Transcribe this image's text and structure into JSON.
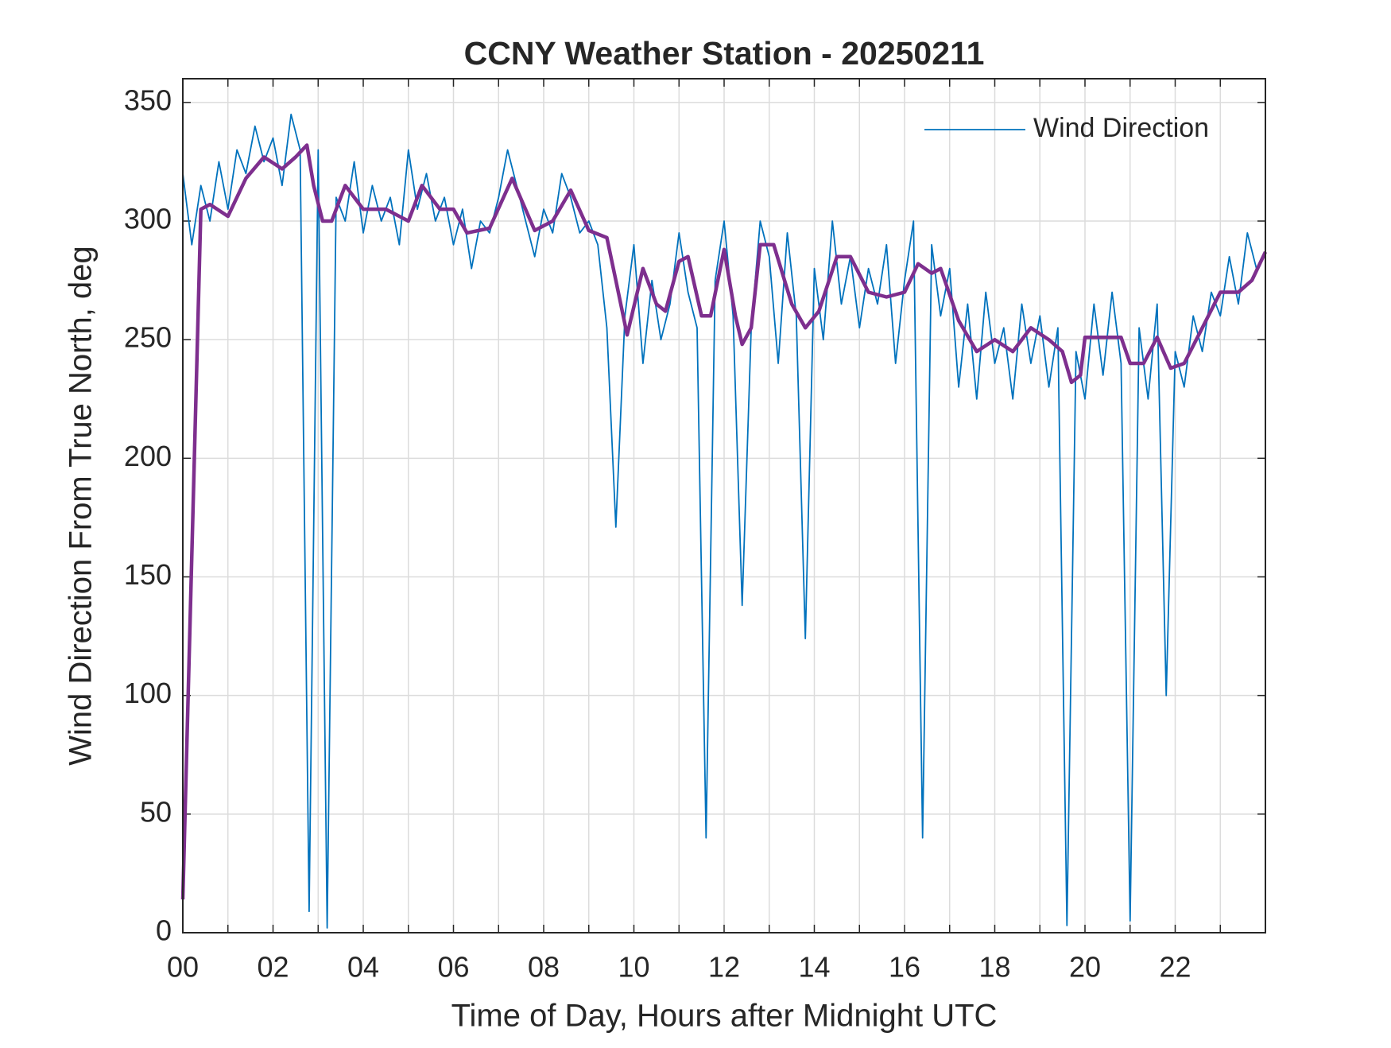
{
  "chart_data": {
    "type": "line",
    "title": "CCNY Weather Station - 20250211",
    "x_label": "Time of Day, Hours after Midnight UTC",
    "y_label": "Wind Direction From True North, deg",
    "xlim": [
      0,
      24
    ],
    "ylim": [
      0,
      360
    ],
    "xticks": [
      {
        "value": 0,
        "label": "00"
      },
      {
        "value": 2,
        "label": "02"
      },
      {
        "value": 4,
        "label": "04"
      },
      {
        "value": 6,
        "label": "06"
      },
      {
        "value": 8,
        "label": "08"
      },
      {
        "value": 10,
        "label": "10"
      },
      {
        "value": 12,
        "label": "12"
      },
      {
        "value": 14,
        "label": "14"
      },
      {
        "value": 16,
        "label": "16"
      },
      {
        "value": 18,
        "label": "18"
      },
      {
        "value": 20,
        "label": "20"
      },
      {
        "value": 22,
        "label": "22"
      }
    ],
    "x_minor_ticks": [
      1,
      3,
      5,
      7,
      9,
      11,
      13,
      15,
      17,
      19,
      21,
      23
    ],
    "yticks": [
      0,
      50,
      100,
      150,
      200,
      250,
      300,
      350
    ],
    "grid": true,
    "legend": "northeast",
    "series": [
      {
        "name": "Wind Direction",
        "color": "#0072bd",
        "x": [
          0,
          0.2,
          0.4,
          0.6,
          0.8,
          1,
          1.2,
          1.4,
          1.6,
          1.8,
          2,
          2.2,
          2.4,
          2.6,
          2.8,
          3,
          3.2,
          3.4,
          3.6,
          3.8,
          4,
          4.2,
          4.4,
          4.6,
          4.8,
          5,
          5.2,
          5.4,
          5.6,
          5.8,
          6,
          6.2,
          6.4,
          6.6,
          6.8,
          7,
          7.2,
          7.4,
          7.6,
          7.8,
          8,
          8.2,
          8.4,
          8.6,
          8.8,
          9,
          9.2,
          9.4,
          9.6,
          9.8,
          10,
          10.2,
          10.4,
          10.6,
          10.8,
          11,
          11.2,
          11.4,
          11.6,
          11.8,
          12,
          12.2,
          12.4,
          12.6,
          12.8,
          13,
          13.2,
          13.4,
          13.6,
          13.8,
          14,
          14.2,
          14.4,
          14.6,
          14.8,
          15,
          15.2,
          15.4,
          15.6,
          15.8,
          16,
          16.2,
          16.4,
          16.6,
          16.8,
          17,
          17.2,
          17.4,
          17.6,
          17.8,
          18,
          18.2,
          18.4,
          18.6,
          18.8,
          19,
          19.2,
          19.4,
          19.6,
          19.8,
          20,
          20.2,
          20.4,
          20.6,
          20.8,
          21,
          21.2,
          21.4,
          21.6,
          21.8,
          22,
          22.2,
          22.4,
          22.6,
          22.8,
          23,
          23.2,
          23.4,
          23.6,
          23.8
        ],
        "values": [
          320,
          290,
          315,
          300,
          325,
          305,
          330,
          320,
          340,
          325,
          335,
          315,
          345,
          330,
          9,
          330,
          2,
          310,
          300,
          325,
          295,
          315,
          300,
          310,
          290,
          330,
          305,
          320,
          300,
          310,
          290,
          305,
          280,
          300,
          295,
          310,
          330,
          315,
          300,
          285,
          305,
          295,
          320,
          310,
          295,
          300,
          290,
          255,
          171,
          260,
          290,
          240,
          275,
          250,
          265,
          295,
          270,
          255,
          40,
          275,
          300,
          260,
          138,
          255,
          300,
          285,
          240,
          295,
          260,
          124,
          280,
          250,
          300,
          265,
          285,
          255,
          280,
          265,
          290,
          240,
          275,
          300,
          40,
          290,
          260,
          280,
          230,
          265,
          225,
          270,
          240,
          255,
          225,
          265,
          240,
          260,
          230,
          255,
          3,
          245,
          225,
          265,
          235,
          270,
          240,
          5,
          255,
          225,
          265,
          100,
          245,
          230,
          260,
          245,
          270,
          260,
          285,
          265,
          295,
          280
        ]
      },
      {
        "color": "#7e2f8e",
        "x": [
          0,
          0.4,
          0.6,
          1,
          1.4,
          1.8,
          2.2,
          2.5,
          2.75,
          2.9,
          3.1,
          3.3,
          3.6,
          4,
          4.5,
          5,
          5.3,
          5.7,
          6,
          6.3,
          6.8,
          7.3,
          7.8,
          8.2,
          8.6,
          9,
          9.4,
          9.6,
          9.85,
          10.2,
          10.5,
          10.7,
          11,
          11.2,
          11.5,
          11.7,
          12,
          12.25,
          12.4,
          12.6,
          12.8,
          13.1,
          13.5,
          13.8,
          14.1,
          14.5,
          14.8,
          15.2,
          15.6,
          16,
          16.3,
          16.6,
          16.8,
          17.2,
          17.6,
          18,
          18.4,
          18.8,
          19.2,
          19.5,
          19.7,
          19.9,
          20,
          20.8,
          21,
          21.3,
          21.6,
          21.9,
          22.2,
          22.6,
          23,
          23.4,
          23.7,
          24
        ],
        "values": [
          14,
          305,
          307,
          302,
          318,
          327,
          322,
          327,
          332,
          315,
          300,
          300,
          315,
          305,
          305,
          300,
          315,
          305,
          305,
          295,
          297,
          318,
          296,
          300,
          313,
          296,
          293,
          275,
          252,
          280,
          265,
          262,
          283,
          285,
          260,
          260,
          288,
          260,
          248,
          255,
          290,
          290,
          265,
          255,
          262,
          285,
          285,
          270,
          268,
          270,
          282,
          278,
          280,
          258,
          245,
          250,
          245,
          255,
          250,
          245,
          232,
          235,
          251,
          251,
          240,
          240,
          251,
          238,
          240,
          255,
          270,
          270,
          275,
          287
        ]
      }
    ]
  }
}
